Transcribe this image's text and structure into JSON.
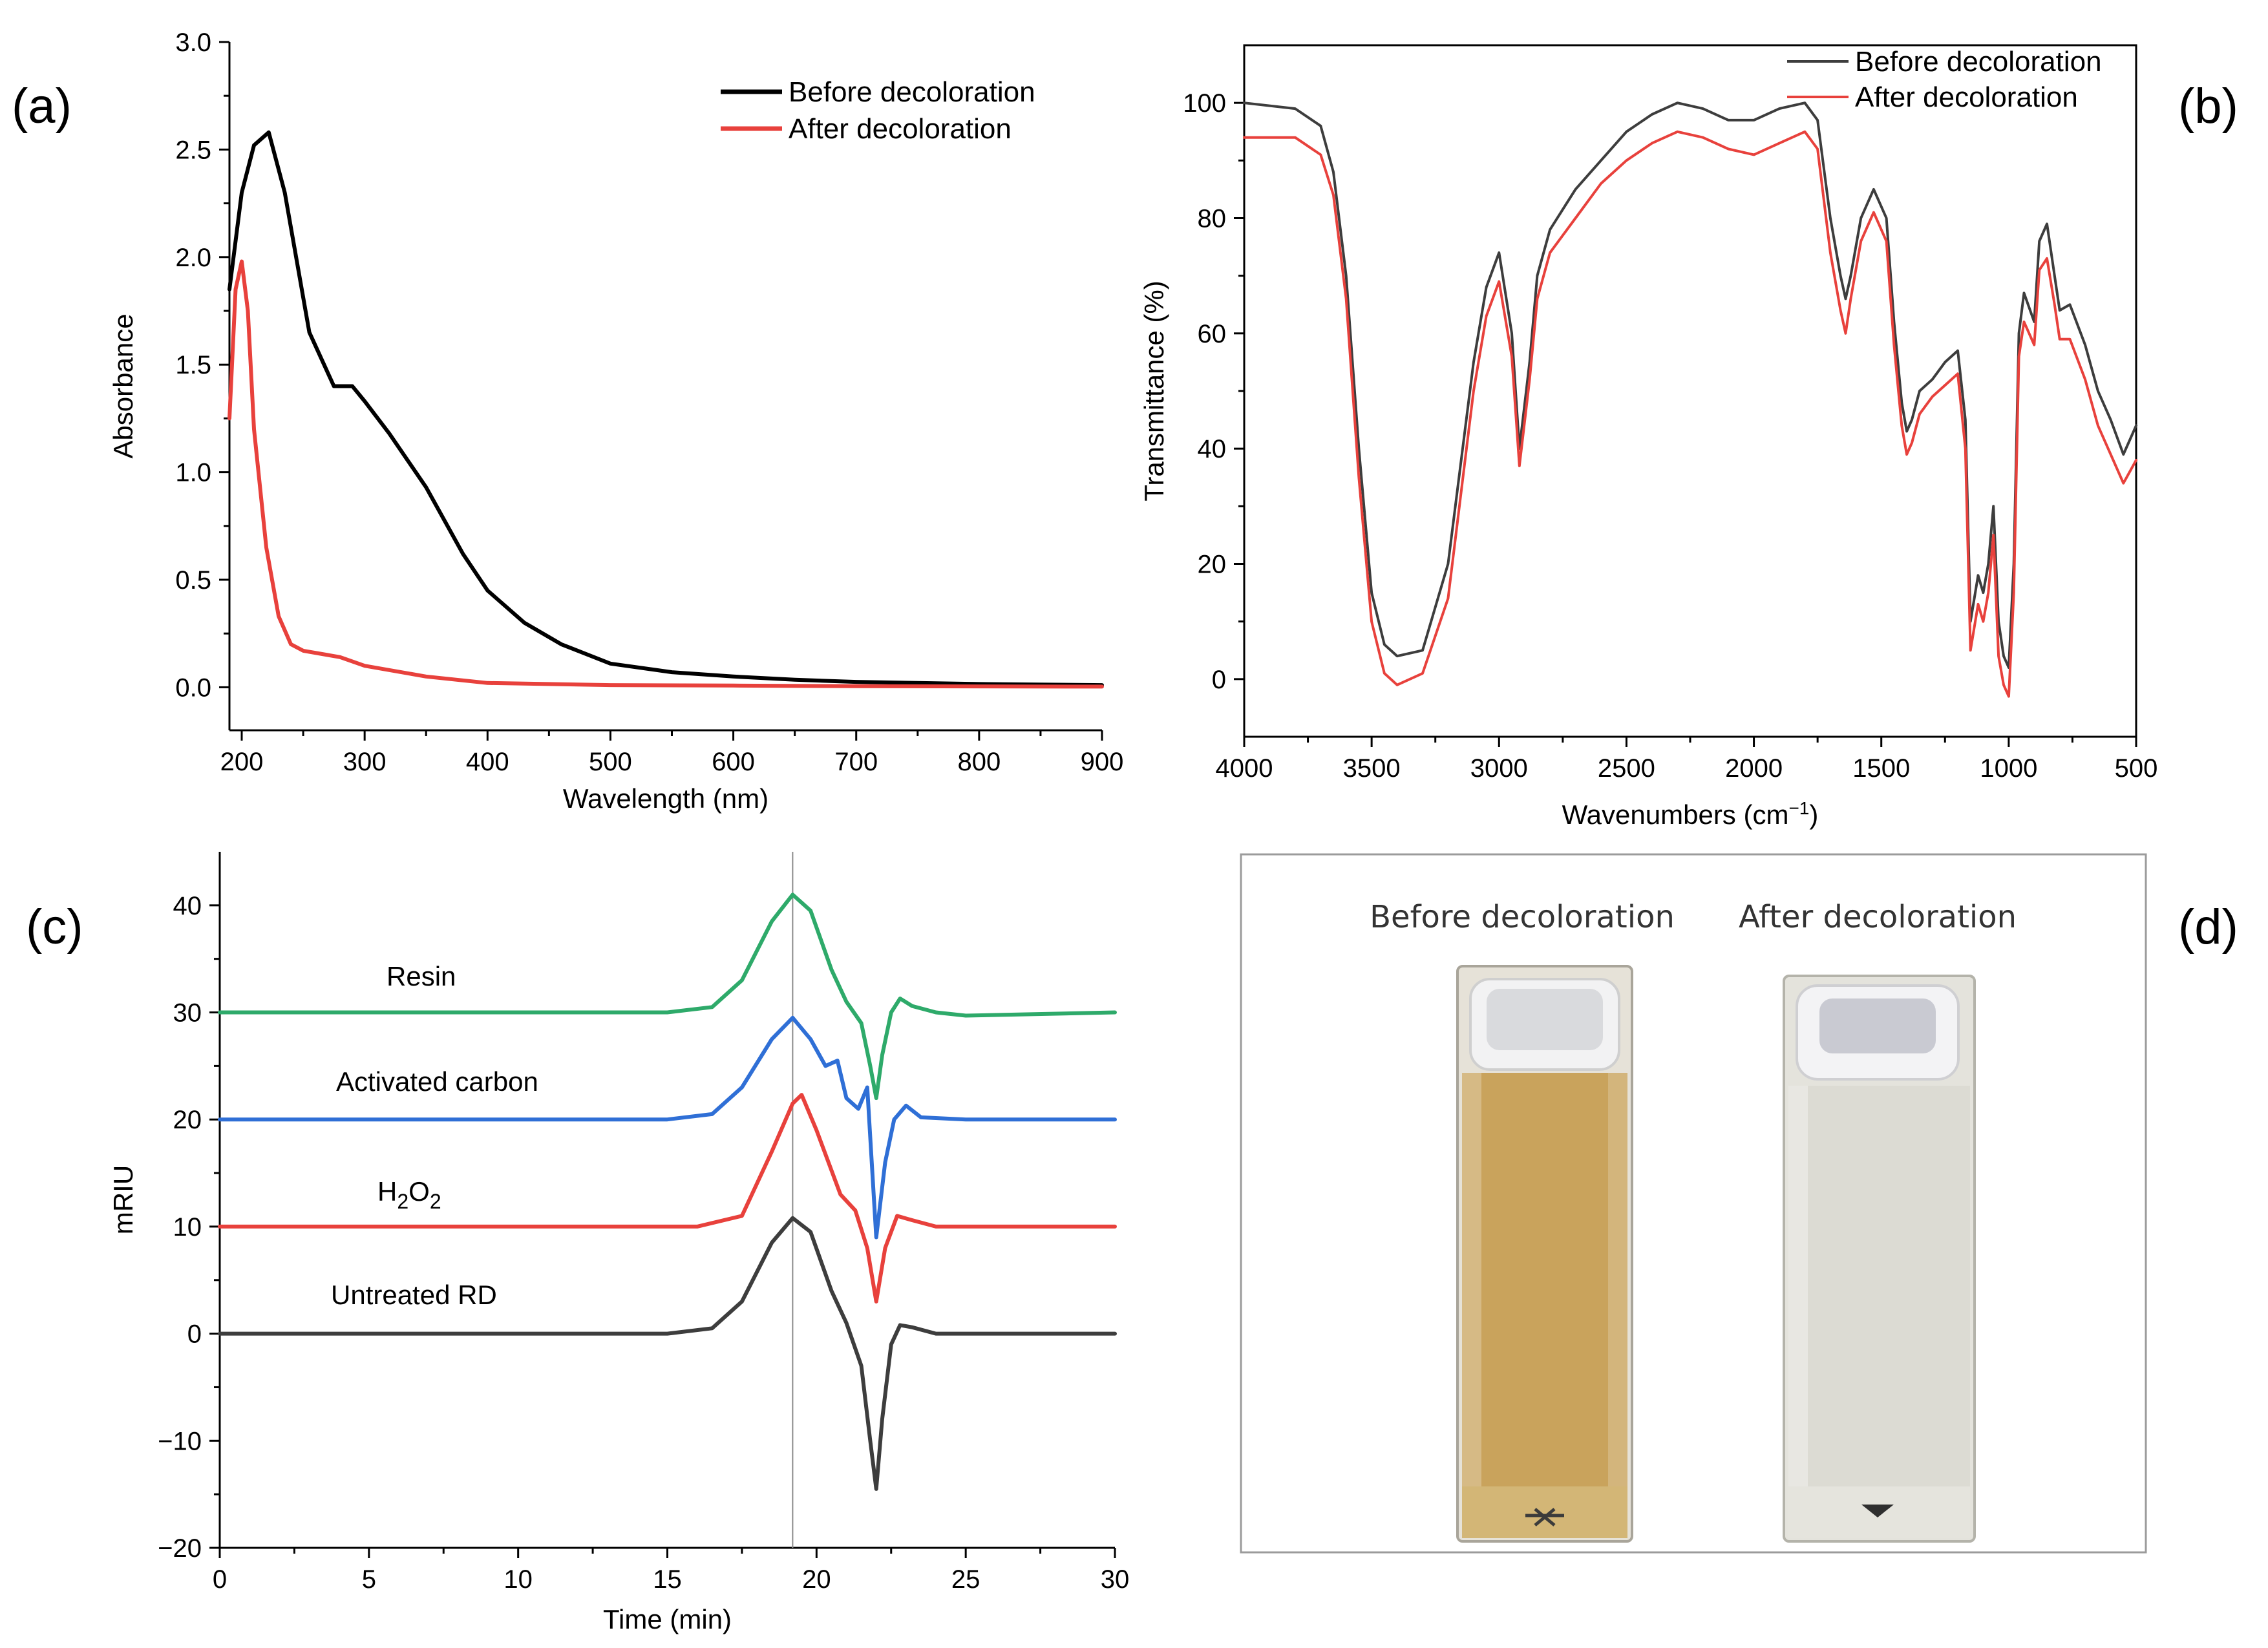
{
  "panel_labels": [
    "(a)",
    "(b)",
    "(c)",
    "(d)"
  ],
  "chart_data": [
    {
      "panel": "(a)",
      "type": "line",
      "xlabel": "Wavelength (nm)",
      "ylabel": "Absorbance",
      "xlim": [
        190,
        900
      ],
      "ylim": [
        -0.2,
        3.0
      ],
      "xticks": [
        200,
        300,
        400,
        500,
        600,
        700,
        800,
        900
      ],
      "yticks": [
        0.0,
        0.5,
        1.0,
        1.5,
        2.0,
        2.5,
        3.0
      ],
      "ytick_labels": [
        "0.0",
        "0.5",
        "1.0",
        "1.5",
        "2.0",
        "2.5",
        "3.0"
      ],
      "legend": "top-right",
      "series": [
        {
          "name": "Before decoloration",
          "color": "#000000",
          "x": [
            190,
            200,
            210,
            222,
            235,
            255,
            275,
            290,
            300,
            320,
            350,
            380,
            400,
            430,
            460,
            500,
            550,
            600,
            650,
            700,
            800,
            900
          ],
          "y": [
            1.85,
            2.3,
            2.52,
            2.58,
            2.3,
            1.65,
            1.4,
            1.4,
            1.33,
            1.18,
            0.93,
            0.62,
            0.45,
            0.3,
            0.2,
            0.11,
            0.07,
            0.05,
            0.035,
            0.025,
            0.015,
            0.01
          ]
        },
        {
          "name": "After decoloration",
          "color": "#e8413c",
          "x": [
            190,
            195,
            200,
            205,
            210,
            220,
            230,
            240,
            250,
            270,
            280,
            300,
            350,
            400,
            500,
            600,
            700,
            800,
            900
          ],
          "y": [
            1.25,
            1.85,
            1.98,
            1.75,
            1.2,
            0.65,
            0.33,
            0.2,
            0.17,
            0.15,
            0.14,
            0.1,
            0.05,
            0.02,
            0.01,
            0.008,
            0.005,
            0.004,
            0.003
          ]
        }
      ]
    },
    {
      "panel": "(b)",
      "type": "line",
      "xlabel": "Wavenumbers (cm",
      "xlabel_sup": "−1",
      "xlabel_end": ")",
      "ylabel": "Transmittance (%)",
      "xlim": [
        4000,
        500
      ],
      "ylim": [
        -10,
        110
      ],
      "xticks": [
        4000,
        3500,
        3000,
        2500,
        2000,
        1500,
        1000,
        500
      ],
      "yticks": [
        0,
        20,
        40,
        60,
        80,
        100
      ],
      "legend": "top-right",
      "series": [
        {
          "name": "Before decoloration",
          "color": "#3d3d3d",
          "x": [
            4000,
            3800,
            3700,
            3650,
            3600,
            3550,
            3500,
            3450,
            3400,
            3300,
            3200,
            3100,
            3050,
            3000,
            2950,
            2920,
            2880,
            2850,
            2800,
            2700,
            2600,
            2500,
            2400,
            2300,
            2200,
            2100,
            2000,
            1900,
            1800,
            1750,
            1700,
            1660,
            1640,
            1620,
            1580,
            1530,
            1480,
            1450,
            1420,
            1400,
            1380,
            1350,
            1300,
            1250,
            1200,
            1170,
            1150,
            1120,
            1100,
            1080,
            1060,
            1040,
            1020,
            1000,
            980,
            960,
            940,
            900,
            880,
            850,
            820,
            800,
            760,
            700,
            650,
            600,
            550,
            500
          ],
          "y": [
            100,
            99,
            96,
            88,
            70,
            40,
            15,
            6,
            4,
            5,
            20,
            55,
            68,
            74,
            60,
            40,
            55,
            70,
            78,
            85,
            90,
            95,
            98,
            100,
            99,
            97,
            97,
            99,
            100,
            97,
            80,
            70,
            66,
            70,
            80,
            85,
            80,
            62,
            48,
            43,
            45,
            50,
            52,
            55,
            57,
            45,
            10,
            18,
            15,
            20,
            30,
            10,
            4,
            2,
            20,
            60,
            67,
            62,
            76,
            79,
            70,
            64,
            65,
            58,
            50,
            45,
            39,
            44
          ]
        },
        {
          "name": "After decoloration",
          "color": "#e8413c",
          "x": [
            4000,
            3800,
            3700,
            3650,
            3600,
            3550,
            3500,
            3450,
            3400,
            3300,
            3200,
            3100,
            3050,
            3000,
            2950,
            2920,
            2880,
            2850,
            2800,
            2700,
            2600,
            2500,
            2400,
            2300,
            2200,
            2100,
            2000,
            1900,
            1800,
            1750,
            1700,
            1660,
            1640,
            1620,
            1580,
            1530,
            1480,
            1450,
            1420,
            1400,
            1380,
            1350,
            1300,
            1250,
            1200,
            1170,
            1150,
            1120,
            1100,
            1080,
            1060,
            1040,
            1020,
            1000,
            980,
            960,
            940,
            900,
            880,
            850,
            820,
            800,
            760,
            700,
            650,
            600,
            550,
            500
          ],
          "y": [
            94,
            94,
            91,
            84,
            66,
            35,
            10,
            1,
            -1,
            1,
            14,
            50,
            63,
            69,
            56,
            37,
            52,
            66,
            74,
            80,
            86,
            90,
            93,
            95,
            94,
            92,
            91,
            93,
            95,
            92,
            74,
            64,
            60,
            66,
            76,
            81,
            76,
            58,
            44,
            39,
            41,
            46,
            49,
            51,
            53,
            40,
            5,
            13,
            10,
            15,
            25,
            4,
            -1,
            -3,
            15,
            56,
            62,
            58,
            71,
            73,
            65,
            59,
            59,
            52,
            44,
            39,
            34,
            38
          ]
        }
      ]
    },
    {
      "panel": "(c)",
      "type": "line",
      "xlabel": "Time (min)",
      "ylabel": "mRIU",
      "xlim": [
        0,
        30
      ],
      "ylim": [
        -20,
        45
      ],
      "xticks": [
        0,
        5,
        10,
        15,
        20,
        25,
        30
      ],
      "yticks": [
        -20,
        -10,
        0,
        10,
        20,
        30,
        40
      ],
      "ytick_labels": [
        "−20",
        "−10",
        "0",
        "10",
        "20",
        "30",
        "40"
      ],
      "reference_line_x": 19.2,
      "series": [
        {
          "label": "Resin",
          "color": "#2eaa6a",
          "x": [
            0,
            15,
            16.5,
            17.5,
            18.5,
            19.2,
            19.8,
            20.5,
            21,
            21.5,
            21.8,
            22,
            22.2,
            22.5,
            22.8,
            23.2,
            24,
            25,
            30
          ],
          "y": [
            30,
            30,
            30.5,
            33,
            38.5,
            41,
            39.5,
            34,
            31,
            29,
            25,
            22,
            26,
            30,
            31.3,
            30.6,
            30,
            29.7,
            30
          ]
        },
        {
          "label": "Activated carbon",
          "color": "#2f6fd6",
          "x": [
            0,
            15,
            16.5,
            17.5,
            18.5,
            19.2,
            19.8,
            20.3,
            20.7,
            21,
            21.4,
            21.7,
            22,
            22.3,
            22.6,
            23,
            23.5,
            25,
            30
          ],
          "y": [
            20,
            20,
            20.5,
            23,
            27.5,
            29.5,
            27.5,
            25,
            25.5,
            22,
            21,
            23,
            9,
            16,
            20,
            21.3,
            20.2,
            20,
            20
          ]
        },
        {
          "label": "H2O2",
          "color": "#e8413c",
          "x": [
            0,
            16,
            17.5,
            18.5,
            19.2,
            19.5,
            20,
            20.8,
            21.3,
            21.7,
            22,
            22.3,
            22.7,
            23.2,
            24,
            30
          ],
          "y": [
            10,
            10,
            11,
            17,
            21.5,
            22.3,
            19,
            13,
            11.5,
            8,
            3,
            8,
            11,
            10.6,
            10,
            10
          ]
        },
        {
          "label": "Untreated RD",
          "color": "#3d3d3d",
          "x": [
            0,
            15,
            16.5,
            17.5,
            18.5,
            19.2,
            19.8,
            20.5,
            21,
            21.5,
            21.8,
            22,
            22.2,
            22.5,
            22.8,
            23.2,
            24,
            30
          ],
          "y": [
            0,
            0,
            0.5,
            3,
            8.5,
            10.8,
            9.5,
            4,
            1,
            -3,
            -10,
            -14.5,
            -8,
            -1,
            0.8,
            0.6,
            0,
            0
          ]
        }
      ]
    }
  ],
  "series_labels_c": {
    "resin": "Resin",
    "carbon": "Activated carbon",
    "h2o2_main": "H",
    "h2o2_sub1": "2",
    "h2o2_mid": "O",
    "h2o2_sub2": "2",
    "untreated": "Untreated RD"
  },
  "photo": {
    "caption_left": "Before decoloration",
    "caption_right": "After decoloration",
    "left_liquid_color": "#c9a35c",
    "right_liquid_color": "#dcdbd3"
  }
}
